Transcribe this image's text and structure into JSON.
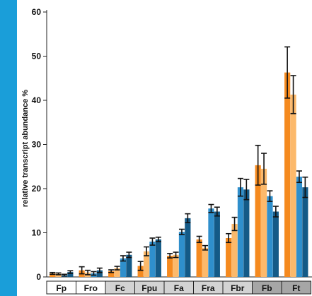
{
  "colors": {
    "sidebar": "#1a9ed9",
    "orange_dark": "#f58a1f",
    "orange_light": "#fcb96b",
    "blue_dark": "#145a87",
    "blue_light": "#2f8fcc",
    "group_white": "#ffffff",
    "group_lightgray": "#d3d3d3",
    "group_darkgray": "#a6a6a6"
  },
  "chart_data": {
    "type": "bar",
    "ylabel": "relative transcript abundance %",
    "ylim": [
      0,
      60
    ],
    "yticks": [
      0,
      10,
      20,
      30,
      40,
      50,
      60
    ],
    "categories": [
      "Fp",
      "Fro",
      "Fc",
      "Fpu",
      "Fa",
      "Fra",
      "Fbr",
      "Fb",
      "Ft"
    ],
    "category_groups": [
      "white",
      "white",
      "lightgray",
      "lightgray",
      "lightgray",
      "lightgray",
      "lightgray",
      "darkgray",
      "darkgray"
    ],
    "series": [
      {
        "values": [
          0.8,
          1.5,
          1.3,
          2.5,
          4.8,
          8.5,
          8.8,
          25.3,
          46.3
        ],
        "errors": [
          0.2,
          0.8,
          0.3,
          1.0,
          0.5,
          0.7,
          1.0,
          4.5,
          5.8
        ]
      },
      {
        "values": [
          0.7,
          1.0,
          2.0,
          5.8,
          5.0,
          6.6,
          12.0,
          24.5,
          41.3
        ],
        "errors": [
          0.2,
          0.5,
          0.4,
          1.0,
          0.6,
          0.5,
          1.5,
          3.5,
          4.3
        ]
      },
      {
        "values": [
          0.4,
          0.8,
          4.2,
          8.0,
          10.2,
          15.5,
          20.3,
          18.3,
          22.7
        ],
        "errors": [
          0.2,
          0.4,
          0.6,
          0.8,
          0.6,
          0.9,
          2.0,
          1.2,
          1.3
        ]
      },
      {
        "values": [
          1.1,
          1.5,
          5.0,
          8.5,
          13.3,
          14.8,
          19.8,
          14.8,
          20.3
        ],
        "errors": [
          0.3,
          0.5,
          0.6,
          0.5,
          1.0,
          1.0,
          2.3,
          1.2,
          2.3
        ]
      }
    ]
  }
}
